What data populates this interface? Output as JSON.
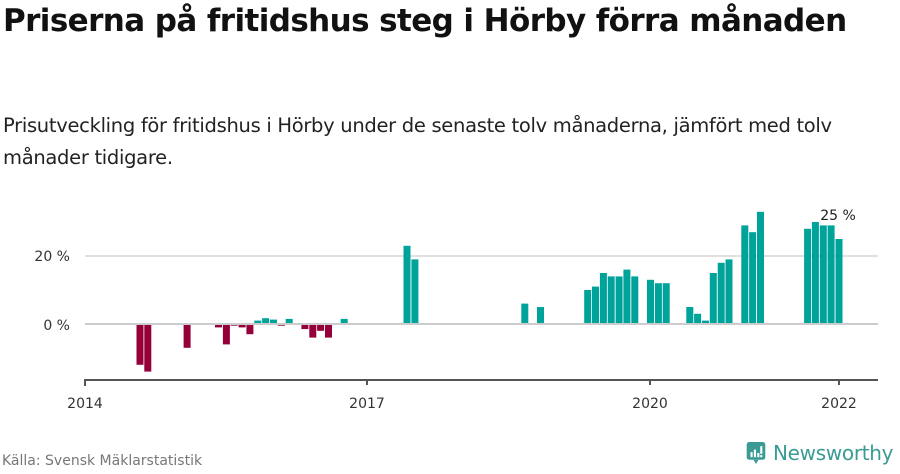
{
  "header": {
    "title": "Priserna på fritidshus steg i Hörby förra månaden",
    "subtitle": "Prisutveckling för fritidshus i Hörby under de senaste tolv månaderna, jämfört med tolv månader tidigare."
  },
  "footer": {
    "source": "Källa: Svensk Mäklarstatistik",
    "brand": "Newsworthy"
  },
  "colors": {
    "positive": "#00a39a",
    "negative": "#95003a",
    "gridline": "#e0e0e0",
    "zeroline": "#cccccc",
    "axis": "#555555",
    "brand": "#3a9b94"
  },
  "chart_data": {
    "type": "bar",
    "title": "Priserna på fritidshus steg i Hörby förra månaden",
    "subtitle": "Prisutveckling för fritidshus i Hörby under de senaste tolv månaderna, jämfört med tolv månader tidigare.",
    "xlabel": "",
    "ylabel": "",
    "y_unit": "%",
    "ylim": [
      -16,
      34
    ],
    "yticks": [
      0,
      20
    ],
    "ytick_labels": [
      "0 %",
      "20 %"
    ],
    "xticks": [
      "2014",
      "2017",
      "2020",
      "2022"
    ],
    "grid": true,
    "legend": null,
    "annotations": [
      {
        "x": "2022-01",
        "text": "25 %"
      }
    ],
    "x": [
      "2014-08",
      "2014-09",
      "2015-02",
      "2015-06",
      "2015-07",
      "2015-08",
      "2015-09",
      "2015-10",
      "2015-11",
      "2015-12",
      "2016-01",
      "2016-02",
      "2016-03",
      "2016-05",
      "2016-06",
      "2016-07",
      "2016-08",
      "2016-10",
      "2017-06",
      "2017-07",
      "2018-09",
      "2018-11",
      "2019-05",
      "2019-06",
      "2019-07",
      "2019-08",
      "2019-09",
      "2019-10",
      "2019-11",
      "2020-01",
      "2020-02",
      "2020-03",
      "2020-06",
      "2020-07",
      "2020-08",
      "2020-09",
      "2020-10",
      "2020-11",
      "2021-01",
      "2021-02",
      "2021-03",
      "2021-09",
      "2021-10",
      "2021-11",
      "2021-12",
      "2022-01"
    ],
    "values": [
      -12,
      -14,
      -7,
      -1,
      -6,
      -0.5,
      -1,
      -3,
      1,
      1.7,
      1.3,
      -0.5,
      1.5,
      -1.5,
      -4,
      -2,
      -4,
      1.5,
      23,
      19,
      6,
      5,
      10,
      11,
      15,
      14,
      14,
      16,
      14,
      13,
      12,
      12,
      5,
      3,
      1,
      15,
      18,
      19,
      29,
      27,
      33,
      28,
      30,
      29,
      29,
      25
    ]
  },
  "ticks": {
    "y0": "0 %",
    "y20": "20 %",
    "x2014": "2014",
    "x2017": "2017",
    "x2020": "2020",
    "x2022": "2022",
    "last_value": "25 %"
  }
}
